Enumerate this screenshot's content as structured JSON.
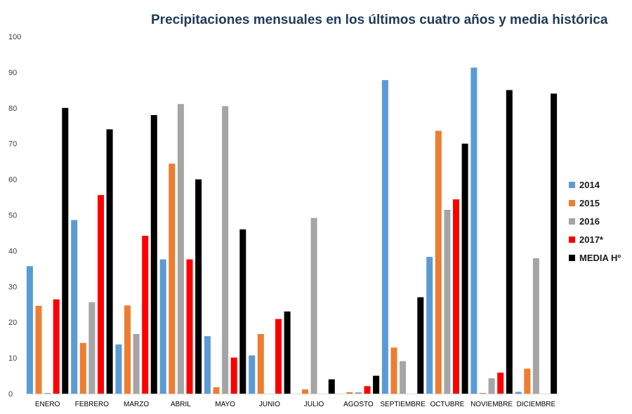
{
  "chart_data": {
    "type": "bar",
    "title": "Precipitaciones mensuales en los últimos cuatro años y media histórica",
    "xlabel": "",
    "ylabel": "",
    "ylim": [
      0,
      100
    ],
    "yticks": [
      0,
      10,
      20,
      30,
      40,
      50,
      60,
      70,
      80,
      90,
      100
    ],
    "grid": false,
    "legend_position": "right",
    "categories": [
      "ENERO",
      "FEBRERO",
      "MARZO",
      "ABRIL",
      "MAYO",
      "JUNIO",
      "JULIO",
      "AGOSTO",
      "SEPTIEMBRE",
      "OCTUBRE",
      "NOVIEMBRE",
      "DICIEMBRE"
    ],
    "series": [
      {
        "name": "2014",
        "color": "#5b9bd5",
        "values": [
          35.7,
          48.6,
          13.8,
          37.6,
          16.1,
          10.7,
          0,
          0,
          87.8,
          38.3,
          91.3,
          0.5
        ]
      },
      {
        "name": "2015",
        "color": "#ed7d31",
        "values": [
          24.6,
          14.2,
          24.7,
          64.4,
          1.8,
          16.7,
          1.2,
          0.4,
          12.9,
          73.6,
          0.2,
          7.0
        ]
      },
      {
        "name": "2016",
        "color": "#a5a5a5",
        "values": [
          0.2,
          25.6,
          16.7,
          81.1,
          80.5,
          0,
          49.2,
          0.4,
          9.1,
          51.5,
          4.3,
          37.9
        ]
      },
      {
        "name": "2017*",
        "color": "#ff0000",
        "values": [
          26.4,
          55.6,
          44.2,
          37.6,
          10.1,
          20.9,
          0,
          2.1,
          0,
          54.4,
          5.9,
          0
        ]
      },
      {
        "name": "MEDIA Hº",
        "color": "#000000",
        "values": [
          80,
          74,
          78,
          60,
          46,
          23,
          4,
          5,
          27,
          70,
          85,
          84
        ]
      }
    ]
  }
}
